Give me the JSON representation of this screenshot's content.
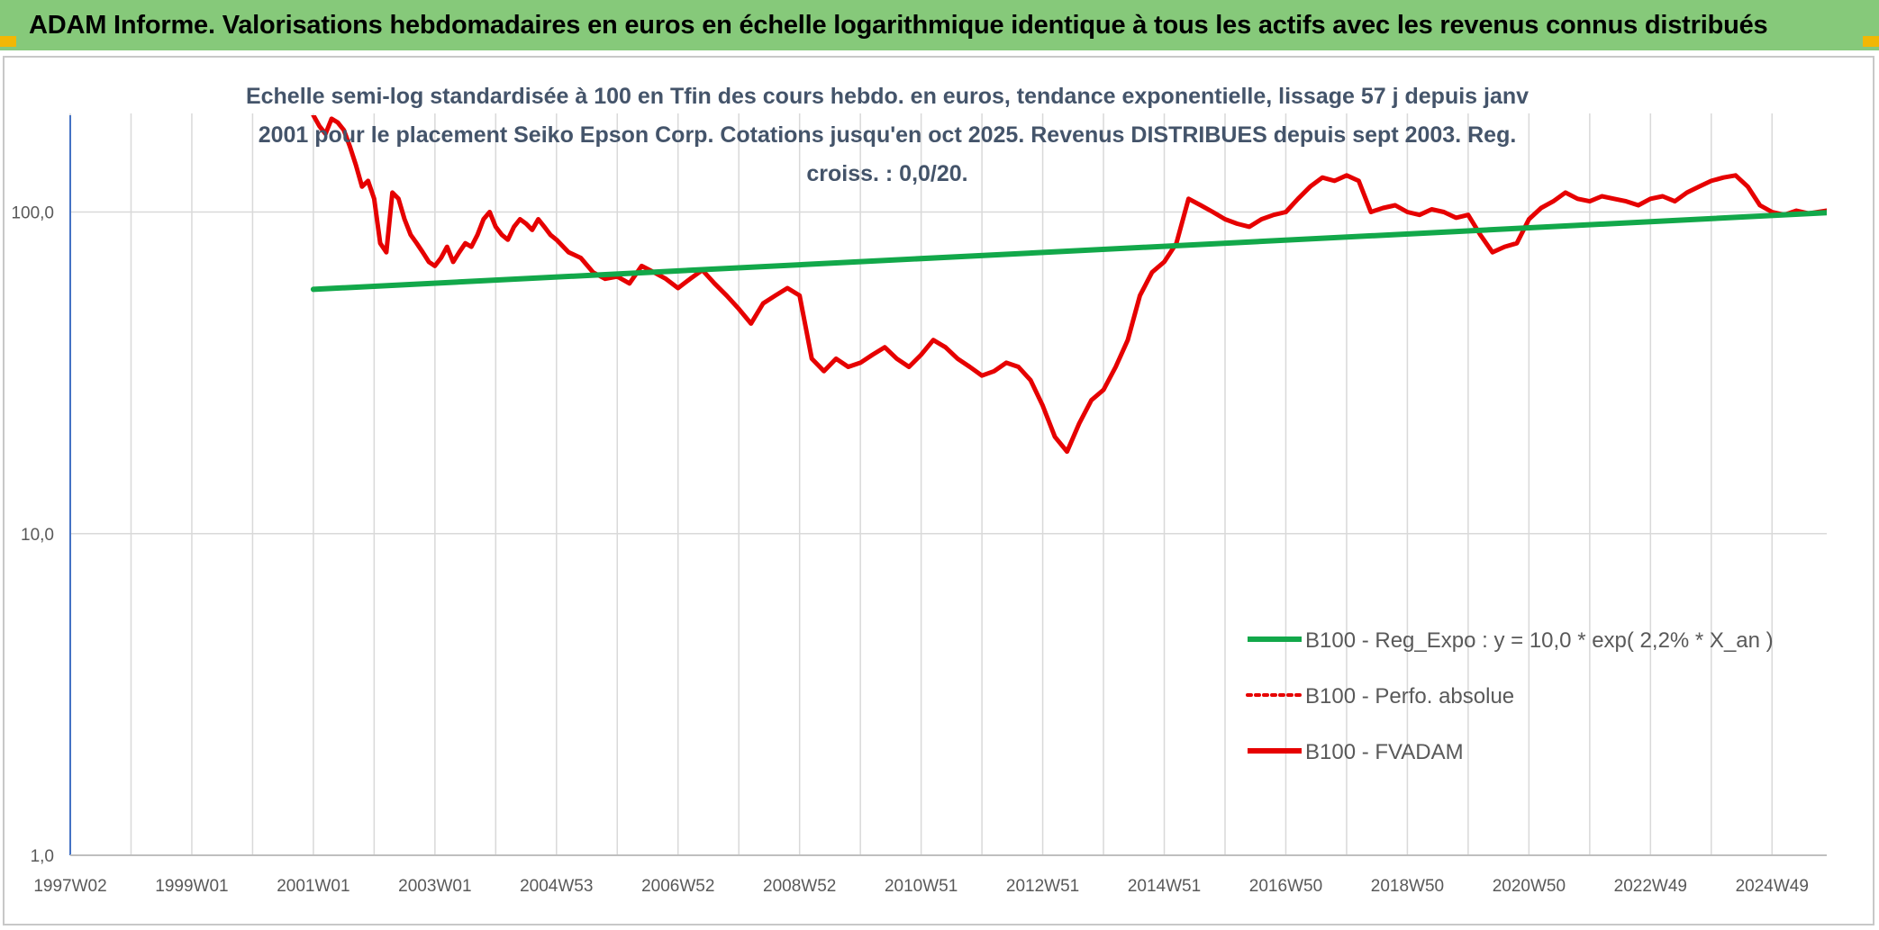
{
  "header": {
    "title": "ADAM Informe. Valorisations hebdomadaires en euros en échelle logarithmique identique à tous les actifs avec les revenus connus distribués"
  },
  "chart_data": {
    "type": "line",
    "title": "Echelle semi-log standardisée à 100 en Tfin des cours hebdo. en euros, tendance exponentielle, lissage 57 j depuis janv 2001 pour le placement Seiko Epson Corp. Cotations jusqu'en oct 2025. Revenus DISTRIBUES depuis sept 2003. Reg. croiss. : 0,0/20.",
    "xlabel": "",
    "ylabel": "",
    "y_scale": "log",
    "ylim": [
      1,
      200
    ],
    "xlim": [
      1997.0,
      2025.9
    ],
    "y_ticks": [
      1,
      10,
      100
    ],
    "y_tick_labels": [
      "1,0",
      "10,0",
      "100,0"
    ],
    "x_ticks": [
      1997.0,
      1999.0,
      2001.0,
      2003.0,
      2005.0,
      2007.0,
      2009.0,
      2011.0,
      2013.0,
      2015.0,
      2017.0,
      2019.0,
      2021.0,
      2023.0,
      2025.0
    ],
    "x_tick_labels": [
      "1997W02",
      "1999W01",
      "2001W01",
      "2003W01",
      "2004W53",
      "2006W52",
      "2008W52",
      "2010W51",
      "2012W51",
      "2014W51",
      "2016W50",
      "2018W50",
      "2020W50",
      "2022W49",
      "2024W49"
    ],
    "grid": true,
    "legend_position": "bottom-right",
    "colors": {
      "fvadam": "#e60000",
      "perfo": "#e60000",
      "reg": "#12a84a",
      "grid": "#d9d9d9",
      "axis": "#4472c4"
    },
    "series": [
      {
        "name": "B100 - Reg_Expo : y = 10,0 * exp( 2,2% *  X_an )",
        "style": "solid-green",
        "x": [
          2001.0,
          2025.9
        ],
        "y": [
          57.5,
          99.5
        ]
      },
      {
        "name": "B100 - Perfo. absolue",
        "style": "dotted-red",
        "x": [],
        "y": []
      },
      {
        "name": "B100 - FVADAM",
        "style": "solid-red",
        "x": [
          2001.0,
          2001.1,
          2001.2,
          2001.3,
          2001.4,
          2001.5,
          2001.6,
          2001.7,
          2001.8,
          2001.9,
          2002.0,
          2002.1,
          2002.2,
          2002.3,
          2002.4,
          2002.5,
          2002.6,
          2002.7,
          2002.8,
          2002.9,
          2003.0,
          2003.1,
          2003.2,
          2003.3,
          2003.4,
          2003.5,
          2003.6,
          2003.7,
          2003.8,
          2003.9,
          2004.0,
          2004.1,
          2004.2,
          2004.3,
          2004.4,
          2004.5,
          2004.6,
          2004.7,
          2004.8,
          2004.9,
          2005.0,
          2005.2,
          2005.4,
          2005.6,
          2005.8,
          2006.0,
          2006.2,
          2006.4,
          2006.6,
          2006.8,
          2007.0,
          2007.2,
          2007.4,
          2007.6,
          2007.8,
          2008.0,
          2008.2,
          2008.4,
          2008.6,
          2008.8,
          2009.0,
          2009.2,
          2009.4,
          2009.6,
          2009.8,
          2010.0,
          2010.2,
          2010.4,
          2010.6,
          2010.8,
          2011.0,
          2011.2,
          2011.4,
          2011.6,
          2011.8,
          2012.0,
          2012.2,
          2012.4,
          2012.6,
          2012.8,
          2013.0,
          2013.2,
          2013.4,
          2013.6,
          2013.8,
          2014.0,
          2014.2,
          2014.4,
          2014.6,
          2014.8,
          2015.0,
          2015.2,
          2015.4,
          2015.6,
          2015.8,
          2016.0,
          2016.2,
          2016.4,
          2016.6,
          2016.8,
          2017.0,
          2017.2,
          2017.4,
          2017.6,
          2017.8,
          2018.0,
          2018.2,
          2018.4,
          2018.6,
          2018.8,
          2019.0,
          2019.2,
          2019.4,
          2019.6,
          2019.8,
          2020.0,
          2020.2,
          2020.4,
          2020.6,
          2020.8,
          2021.0,
          2021.2,
          2021.4,
          2021.6,
          2021.8,
          2022.0,
          2022.2,
          2022.4,
          2022.6,
          2022.8,
          2023.0,
          2023.2,
          2023.4,
          2023.6,
          2023.8,
          2024.0,
          2024.2,
          2024.4,
          2024.6,
          2024.8,
          2025.0,
          2025.2,
          2025.4,
          2025.6,
          2025.9
        ],
        "y": [
          200,
          185,
          175,
          195,
          190,
          180,
          160,
          140,
          120,
          125,
          110,
          80,
          75,
          115,
          110,
          95,
          85,
          80,
          75,
          70,
          68,
          72,
          78,
          70,
          75,
          80,
          78,
          85,
          95,
          100,
          90,
          85,
          82,
          90,
          95,
          92,
          88,
          95,
          90,
          85,
          82,
          75,
          72,
          65,
          62,
          63,
          60,
          68,
          65,
          62,
          58,
          62,
          66,
          60,
          55,
          50,
          45,
          52,
          55,
          58,
          55,
          35,
          32,
          35,
          33,
          34,
          36,
          38,
          35,
          33,
          36,
          40,
          38,
          35,
          33,
          31,
          32,
          34,
          33,
          30,
          25,
          20,
          18,
          22,
          26,
          28,
          33,
          40,
          55,
          65,
          70,
          80,
          110,
          105,
          100,
          95,
          92,
          90,
          95,
          98,
          100,
          110,
          120,
          128,
          125,
          130,
          125,
          100,
          103,
          105,
          100,
          98,
          102,
          100,
          96,
          98,
          85,
          75,
          78,
          80,
          95,
          103,
          108,
          115,
          110,
          108,
          112,
          110,
          108,
          105,
          110,
          112,
          108,
          115,
          120,
          125,
          128,
          130,
          120,
          105,
          100,
          98,
          101,
          99,
          101
        ]
      }
    ]
  }
}
